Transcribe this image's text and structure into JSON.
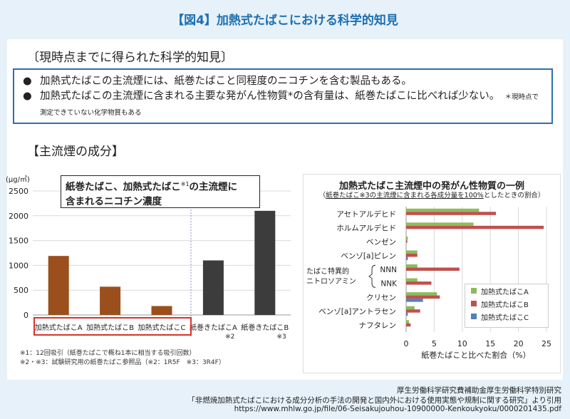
{
  "figure_title": "【図4】加熱式たばこにおける科学的知見",
  "section1_heading": "〔現時点までに得られた科学的知見〕",
  "bullets": [
    {
      "text": "加熱式たばこの主流煙には、紙巻たばこと同程度のニコチンを含む製品もある。",
      "note": ""
    },
    {
      "text": "加熱式たばこの主流煙に含まれる主要な発がん性物質*の含有量は、紙巻たばこに比べれば少ない。",
      "note": "＊現時点で測定できていない化学物質もある"
    }
  ],
  "section2_heading": "【主流煙の成分】",
  "left_chart_box": {
    "line1": "紙巻たばこ、加熱式たばこ",
    "sup": "※1",
    "line1b": "の主流煙に",
    "line2": "含まれるニコチン濃度"
  },
  "left_footnotes": [
    "※1：12回吸引（紙巻たばこで概ね1本に相当する吸引回数）",
    "※2・※3：試験研究用の紙巻たばこ参照品（※2：1R5F　※3：3R4F）"
  ],
  "right_chart_title": "加熱式たばこ主流煙中の発がん性物質の一例",
  "right_chart_subtitle": {
    "pre": "（",
    "underlined": "紙巻たばこ※3の主流煙に含まれる各成分量を100%",
    "post": "としたときの割合）"
  },
  "right_brace_label": [
    "たばこ特異的",
    "ニトロソアミン"
  ],
  "citation": [
    "厚生労働科学研究費補助金厚生労働科学特別研究",
    "「非燃焼加熱式たばこにおける成分分析の手法の開発と国内外における使用実態や規制に関する研究」より引用",
    "https://www.mhlw.go.jp/file/06-Seisakujouhou-10900000-Kenkoukyoku/0000201435.pdf"
  ],
  "chart_data": [
    {
      "type": "bar",
      "ylabel": "(μg/㎥)",
      "ylim": [
        0,
        2500
      ],
      "yticks": [
        0,
        500,
        1000,
        1500,
        2000,
        2500
      ],
      "categories": [
        "加熱式たばこA",
        "加熱式たばこB",
        "加熱式たばこC",
        "紙巻きたばこA",
        "紙巻きたばこB"
      ],
      "category_notes": [
        "",
        "",
        "",
        "※2",
        "※3"
      ],
      "values": [
        1190,
        570,
        180,
        1100,
        2100
      ],
      "colors": [
        "#9b4f1c",
        "#9b4f1c",
        "#9b4f1c",
        "#3c3c3c",
        "#3c3c3c"
      ]
    },
    {
      "type": "bar",
      "orientation": "horizontal",
      "xlabel": "紙巻たばこと比べた割合（%）",
      "xlim": [
        0,
        25
      ],
      "xticks": [
        0,
        5,
        10,
        15,
        20,
        25
      ],
      "categories": [
        "アセトアルデヒド",
        "ホルムアルデヒド",
        "ベンゼン",
        "ベンゾ[a]ピレン",
        "NNN",
        "NNK",
        "クリセン",
        "ベンゾ[a]アントラセン",
        "ナフタレン"
      ],
      "series": [
        {
          "name": "加熱式たばこA",
          "color": "#8dbb5a",
          "values": [
            13,
            12,
            0.3,
            2,
            2,
            2,
            5.5,
            1.5,
            0.5
          ]
        },
        {
          "name": "加熱式たばこB",
          "color": "#c0504d",
          "values": [
            16,
            24.5,
            0.2,
            2,
            9.5,
            4.5,
            6,
            2.5,
            0.8
          ]
        },
        {
          "name": "加熱式たばこC",
          "color": "#4f81bd",
          "values": [
            0,
            0,
            0,
            0.3,
            0,
            0,
            3,
            0.3,
            0
          ]
        }
      ]
    }
  ]
}
